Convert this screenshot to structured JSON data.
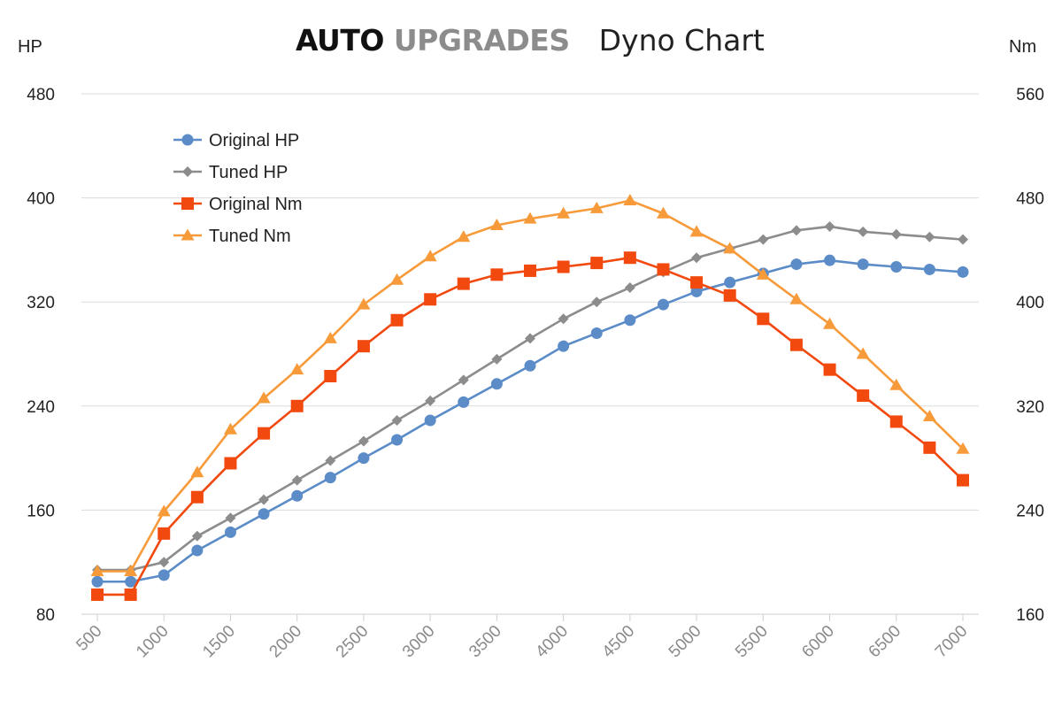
{
  "brand": {
    "part1": "AUTO",
    "part2": "UPGRADES",
    "subtitle": "Dyno Chart"
  },
  "chart_data": {
    "type": "line",
    "title": "Dyno Chart",
    "ylabel_left": "HP",
    "ylabel_right": "Nm",
    "x": [
      500,
      750,
      1000,
      1250,
      1500,
      1750,
      2000,
      2250,
      2500,
      2750,
      3000,
      3250,
      3500,
      3750,
      4000,
      4250,
      4500,
      4750,
      5000,
      5250,
      5500,
      5750,
      6000,
      6250,
      6500,
      6750,
      7000
    ],
    "xticks": [
      "500",
      "1000",
      "1500",
      "2000",
      "2500",
      "3000",
      "3500",
      "4000",
      "4500",
      "5000",
      "5500",
      "6000",
      "6500",
      "7000"
    ],
    "xlim": [
      500,
      7000
    ],
    "ylim_left": [
      80,
      480
    ],
    "yticks_left": [
      "80",
      "160",
      "240",
      "320",
      "400",
      "480"
    ],
    "ylim_right": [
      160,
      560
    ],
    "yticks_right": [
      "160",
      "240",
      "320",
      "400",
      "480",
      "560"
    ],
    "legend_position": "top-left",
    "grid": true,
    "series": [
      {
        "name": "Original HP",
        "axis": "left",
        "color": "#5b8cc8",
        "marker": "circle",
        "values": [
          105,
          105,
          110,
          129,
          143,
          157,
          171,
          185,
          200,
          214,
          229,
          243,
          257,
          271,
          286,
          296,
          306,
          318,
          328,
          335,
          342,
          349,
          352,
          349,
          347,
          345,
          343
        ]
      },
      {
        "name": "Tuned HP",
        "axis": "left",
        "color": "#8c8c8c",
        "marker": "diamond",
        "values": [
          114,
          114,
          120,
          140,
          154,
          168,
          183,
          198,
          213,
          229,
          244,
          260,
          276,
          292,
          307,
          320,
          331,
          343,
          354,
          361,
          368,
          375,
          378,
          374,
          372,
          370,
          368
        ]
      },
      {
        "name": "Original Nm",
        "axis": "right",
        "color": "#f2490f",
        "marker": "square",
        "values": [
          175,
          175,
          222,
          250,
          276,
          299,
          320,
          343,
          366,
          386,
          402,
          414,
          421,
          424,
          427,
          430,
          434,
          425,
          415,
          405,
          387,
          367,
          348,
          328,
          308,
          288,
          263
        ]
      },
      {
        "name": "Tuned Nm",
        "axis": "right",
        "color": "#f79a3a",
        "marker": "triangle",
        "values": [
          193,
          193,
          239,
          269,
          302,
          326,
          348,
          372,
          398,
          417,
          435,
          450,
          459,
          464,
          468,
          472,
          478,
          468,
          454,
          441,
          421,
          402,
          383,
          360,
          336,
          312,
          287
        ]
      }
    ]
  }
}
